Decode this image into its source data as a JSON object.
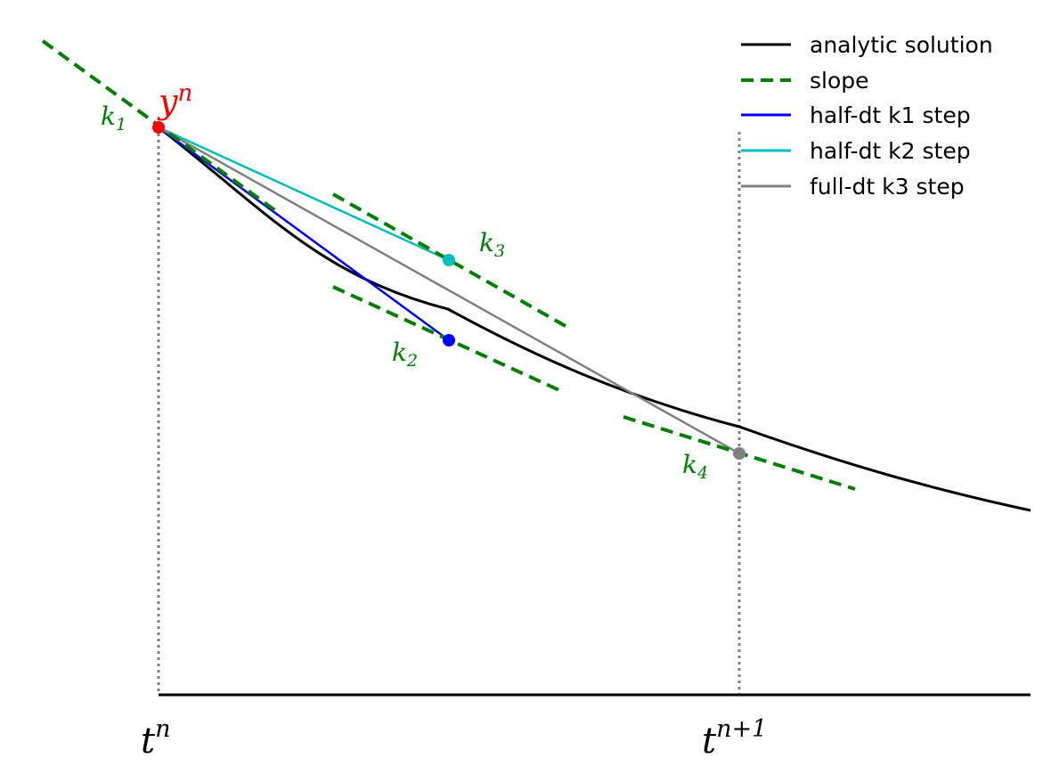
{
  "figure": {
    "labels": {
      "y_point": {
        "base": "y",
        "sup": "n"
      },
      "t_n": {
        "base": "t",
        "sup": "n"
      },
      "t_n1": {
        "base": "t",
        "sup": "n+1"
      },
      "k1": {
        "base": "k",
        "sub": "1"
      },
      "k2": {
        "base": "k",
        "sub": "2"
      },
      "k3": {
        "base": "k",
        "sub": "3"
      },
      "k4": {
        "base": "k",
        "sub": "4"
      }
    },
    "legend": {
      "placement": "top-right",
      "entries": [
        {
          "label": "analytic solution",
          "color": "#000000",
          "style": "solid"
        },
        {
          "label": "slope",
          "color": "#008000",
          "style": "dashed"
        },
        {
          "label": "half-dt k1 step",
          "color": "#0000ff",
          "style": "solid"
        },
        {
          "label": "half-dt k2 step",
          "color": "#00bfbf",
          "style": "solid"
        },
        {
          "label": "full-dt k3 step",
          "color": "#808080",
          "style": "solid"
        }
      ]
    },
    "colors": {
      "analytic": "#000000",
      "slope": "#008000",
      "k1_step": "#0000ff",
      "k2_step": "#00bfbf",
      "k3_step": "#808080",
      "y_point": "#ff0000",
      "guides": "#808080"
    }
  }
}
